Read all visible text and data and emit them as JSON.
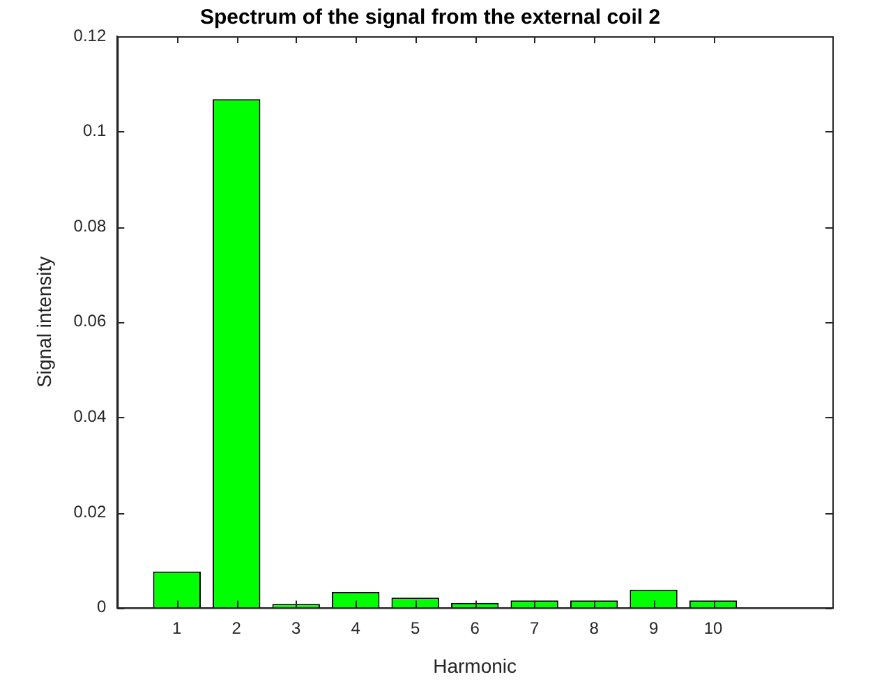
{
  "chart_data": {
    "type": "bar",
    "title": "Spectrum of the signal from the external coil 2",
    "xlabel": "Harmonic",
    "ylabel": "Signal intensity",
    "x": [
      1,
      2,
      3,
      4,
      5,
      6,
      7,
      8,
      9,
      10
    ],
    "values": [
      0.0076,
      0.1068,
      0.0008,
      0.0033,
      0.0021,
      0.001,
      0.0015,
      0.0015,
      0.0038,
      0.0015
    ],
    "color": "#00ff00",
    "xlim": [
      0,
      12
    ],
    "xticks": [
      1,
      2,
      3,
      4,
      5,
      6,
      7,
      8,
      9,
      10
    ],
    "ylim": [
      0,
      0.12
    ],
    "yticks": [
      0,
      0.02,
      0.04,
      0.06,
      0.08,
      0.1,
      0.12
    ],
    "grid": false,
    "legend": false
  }
}
